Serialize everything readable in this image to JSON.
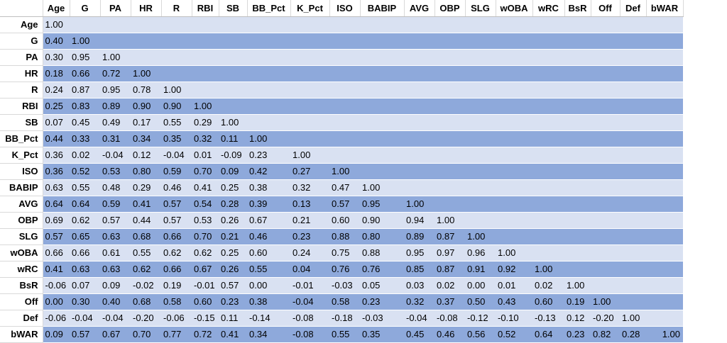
{
  "colors": {
    "band_dark": "#8EA9DB",
    "band_light": "#D9E1F2",
    "header_bg": "#FFFFFF"
  },
  "chart_data": {
    "type": "table",
    "variables": [
      "Age",
      "G",
      "PA",
      "HR",
      "R",
      "RBI",
      "SB",
      "BB_Pct",
      "K_Pct",
      "ISO",
      "BABIP",
      "AVG",
      "OBP",
      "SLG",
      "wOBA",
      "wRC",
      "BsR",
      "Off",
      "Def",
      "bWAR"
    ],
    "rows": [
      {
        "label": "Age",
        "values": [
          "1.00"
        ]
      },
      {
        "label": "G",
        "values": [
          "0.40",
          "1.00"
        ]
      },
      {
        "label": "PA",
        "values": [
          "0.30",
          "0.95",
          "1.00"
        ]
      },
      {
        "label": "HR",
        "values": [
          "0.18",
          "0.66",
          "0.72",
          "1.00"
        ]
      },
      {
        "label": "R",
        "values": [
          "0.24",
          "0.87",
          "0.95",
          "0.78",
          "1.00"
        ]
      },
      {
        "label": "RBI",
        "values": [
          "0.25",
          "0.83",
          "0.89",
          "0.90",
          "0.90",
          "1.00"
        ]
      },
      {
        "label": "SB",
        "values": [
          "0.07",
          "0.45",
          "0.49",
          "0.17",
          "0.55",
          "0.29",
          "1.00"
        ]
      },
      {
        "label": "BB_Pct",
        "values": [
          "0.44",
          "0.33",
          "0.31",
          "0.34",
          "0.35",
          "0.32",
          "0.11",
          "1.00"
        ]
      },
      {
        "label": "K_Pct",
        "values": [
          "0.36",
          "0.02",
          "-0.04",
          "0.12",
          "-0.04",
          "0.01",
          "-0.09",
          "0.23",
          "1.00"
        ]
      },
      {
        "label": "ISO",
        "values": [
          "0.36",
          "0.52",
          "0.53",
          "0.80",
          "0.59",
          "0.70",
          "0.09",
          "0.42",
          "0.27",
          "1.00"
        ]
      },
      {
        "label": "BABIP",
        "values": [
          "0.63",
          "0.55",
          "0.48",
          "0.29",
          "0.46",
          "0.41",
          "0.25",
          "0.38",
          "0.32",
          "0.47",
          "1.00"
        ]
      },
      {
        "label": "AVG",
        "values": [
          "0.64",
          "0.64",
          "0.59",
          "0.41",
          "0.57",
          "0.54",
          "0.28",
          "0.39",
          "0.13",
          "0.57",
          "0.95",
          "1.00"
        ]
      },
      {
        "label": "OBP",
        "values": [
          "0.69",
          "0.62",
          "0.57",
          "0.44",
          "0.57",
          "0.53",
          "0.26",
          "0.67",
          "0.21",
          "0.60",
          "0.90",
          "0.94",
          "1.00"
        ]
      },
      {
        "label": "SLG",
        "values": [
          "0.57",
          "0.65",
          "0.63",
          "0.68",
          "0.66",
          "0.70",
          "0.21",
          "0.46",
          "0.23",
          "0.88",
          "0.80",
          "0.89",
          "0.87",
          "1.00"
        ]
      },
      {
        "label": "wOBA",
        "values": [
          "0.66",
          "0.66",
          "0.61",
          "0.55",
          "0.62",
          "0.62",
          "0.25",
          "0.60",
          "0.24",
          "0.75",
          "0.88",
          "0.95",
          "0.97",
          "0.96",
          "1.00"
        ]
      },
      {
        "label": "wRC",
        "values": [
          "0.41",
          "0.63",
          "0.63",
          "0.62",
          "0.66",
          "0.67",
          "0.26",
          "0.55",
          "0.04",
          "0.76",
          "0.76",
          "0.85",
          "0.87",
          "0.91",
          "0.92",
          "1.00"
        ]
      },
      {
        "label": "BsR",
        "values": [
          "-0.06",
          "0.07",
          "0.09",
          "-0.02",
          "0.19",
          "-0.01",
          "0.57",
          "0.00",
          "-0.01",
          "-0.03",
          "0.05",
          "0.03",
          "0.02",
          "0.00",
          "0.01",
          "0.02",
          "1.00"
        ]
      },
      {
        "label": "Off",
        "values": [
          "0.00",
          "0.30",
          "0.40",
          "0.68",
          "0.58",
          "0.60",
          "0.23",
          "0.38",
          "-0.04",
          "0.58",
          "0.23",
          "0.32",
          "0.37",
          "0.50",
          "0.43",
          "0.60",
          "0.19",
          "1.00"
        ]
      },
      {
        "label": "Def",
        "values": [
          "-0.06",
          "-0.04",
          "-0.04",
          "-0.20",
          "-0.06",
          "-0.15",
          "0.11",
          "-0.14",
          "-0.08",
          "-0.18",
          "-0.03",
          "-0.04",
          "-0.08",
          "-0.12",
          "-0.10",
          "-0.13",
          "0.12",
          "-0.20",
          "1.00"
        ]
      },
      {
        "label": "bWAR",
        "values": [
          "0.09",
          "0.57",
          "0.67",
          "0.70",
          "0.77",
          "0.72",
          "0.41",
          "0.34",
          "-0.08",
          "0.55",
          "0.35",
          "0.45",
          "0.46",
          "0.56",
          "0.52",
          "0.64",
          "0.23",
          "0.82",
          "0.28",
          "1.00"
        ]
      }
    ]
  }
}
